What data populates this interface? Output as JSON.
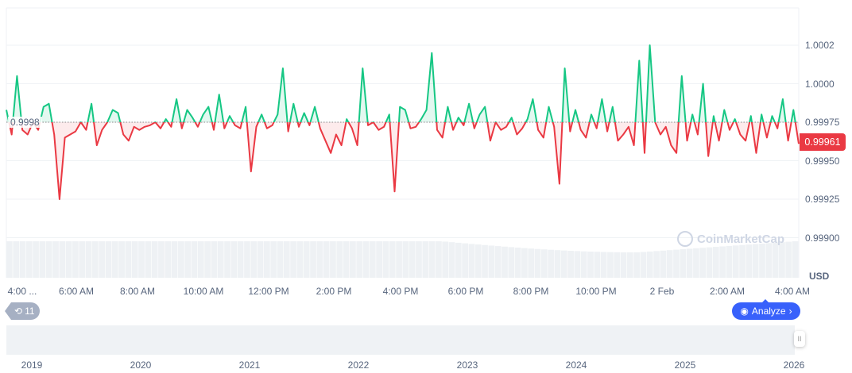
{
  "chart_data": {
    "type": "line",
    "currency": "USD",
    "baseline": 0.99975,
    "baseline_label": "0.9998",
    "current_price": "0.99961",
    "ylim": [
      0.99885,
      1.00028
    ],
    "y_ticks": [
      {
        "v": 1.00025,
        "label": "1.0002"
      },
      {
        "v": 1.0,
        "label": "1.0000"
      },
      {
        "v": 0.99975,
        "label": "0.99975"
      },
      {
        "v": 0.9995,
        "label": "0.99950"
      },
      {
        "v": 0.99925,
        "label": "0.99925"
      },
      {
        "v": 0.999,
        "label": "0.99900"
      }
    ],
    "x_ticks": [
      "4:00 ...",
      "6:00 AM",
      "8:00 AM",
      "10:00 AM",
      "12:00 PM",
      "2:00 PM",
      "4:00 PM",
      "6:00 PM",
      "8:00 PM",
      "10:00 PM",
      "2 Feb",
      "2:00 AM",
      "4:00 AM"
    ],
    "navigator_years": [
      "2019",
      "2020",
      "2021",
      "2022",
      "2023",
      "2024",
      "2025",
      "2026"
    ],
    "values": [
      0.99983,
      0.99967,
      1.00005,
      0.9997,
      0.99967,
      0.99975,
      0.9997,
      0.99985,
      0.99987,
      0.99967,
      0.99925,
      0.99965,
      0.99967,
      0.99969,
      0.99975,
      0.9997,
      0.99987,
      0.9996,
      0.9997,
      0.99975,
      0.99983,
      0.99981,
      0.99967,
      0.99963,
      0.99972,
      0.9997,
      0.99972,
      0.99973,
      0.99975,
      0.99971,
      0.99977,
      0.99972,
      0.9999,
      0.99971,
      0.99983,
      0.99978,
      0.99972,
      0.9998,
      0.99985,
      0.9997,
      0.99993,
      0.99971,
      0.99979,
      0.99973,
      0.99971,
      0.99985,
      0.99943,
      0.99972,
      0.9998,
      0.99971,
      0.99973,
      0.9998,
      1.0001,
      0.99969,
      0.99987,
      0.99972,
      0.99981,
      0.99973,
      0.99985,
      0.99971,
      0.99963,
      0.99955,
      0.99967,
      0.9996,
      0.99977,
      0.99971,
      0.9996,
      1.0001,
      0.99973,
      0.99975,
      0.9997,
      0.99972,
      0.9998,
      0.9993,
      0.99985,
      0.99983,
      0.99971,
      0.99972,
      0.99977,
      0.99983,
      1.0002,
      0.9997,
      0.99965,
      0.99985,
      0.9997,
      0.99978,
      0.99973,
      0.99987,
      0.99971,
      0.9998,
      0.99985,
      0.99963,
      0.99975,
      0.9997,
      0.99972,
      0.99978,
      0.99967,
      0.99971,
      0.99977,
      0.9999,
      0.9997,
      0.99965,
      0.99985,
      0.99972,
      0.99935,
      1.0001,
      0.99969,
      0.99983,
      0.9997,
      0.99965,
      0.9998,
      0.99971,
      0.9999,
      0.99969,
      0.99985,
      0.99963,
      0.99967,
      0.99972,
      0.9996,
      1.00015,
      0.99955,
      1.00025,
      0.99975,
      0.99967,
      0.99972,
      0.9996,
      0.99955,
      1.00005,
      0.99963,
      0.9998,
      0.99967,
      1.0,
      0.99953,
      0.99979,
      0.99963,
      0.99983,
      0.9997,
      0.99977,
      0.99967,
      0.99963,
      0.99979,
      0.99955,
      0.9998,
      0.99965,
      0.99979,
      0.99971,
      0.9999,
      0.99963,
      0.99983,
      0.99961
    ],
    "colors": {
      "up": "#16c784",
      "down": "#ea3943",
      "grid": "#eff2f5",
      "volume": "#eef1f4"
    }
  },
  "watermark": "CoinMarketCap",
  "history_badge": {
    "icon": "history-icon",
    "count": "11"
  },
  "analyze_button": {
    "label": "Analyze",
    "chevron": "›"
  },
  "navigator_handle": "II"
}
